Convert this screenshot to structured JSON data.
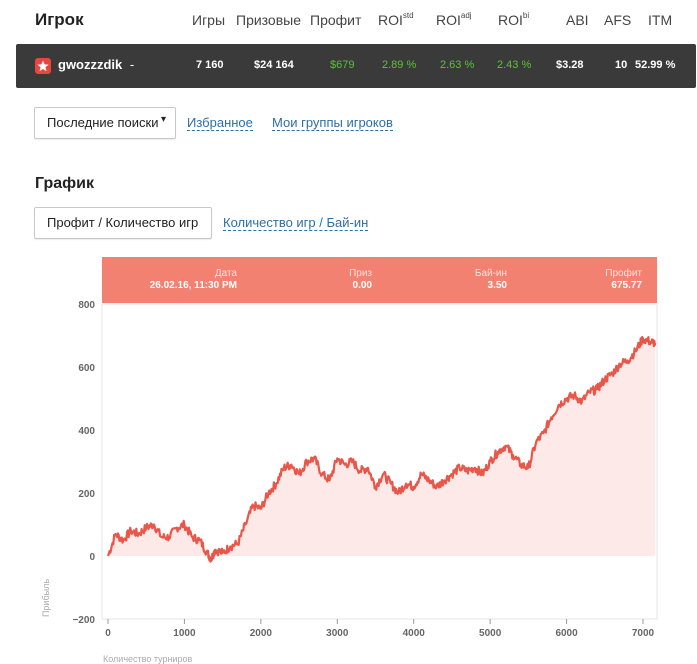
{
  "header": {
    "title": "Игрок",
    "columns": {
      "games": "Игры",
      "prizes": "Призовые",
      "profit": "Профит",
      "roi_std_base": "ROI",
      "roi_std_sup": "std",
      "roi_adj_base": "ROI",
      "roi_adj_sup": "adj",
      "roi_bi_base": "ROI",
      "roi_bi_sup": "bi",
      "abi": "ABI",
      "afs": "AFS",
      "itm": "ITM"
    }
  },
  "player": {
    "name": "gwozzzdik",
    "games": "7 160",
    "prizes": "$24 164",
    "profit": "$679",
    "roi_std": "2.89 %",
    "roi_adj": "2.63 %",
    "roi_bi": "2.43 %",
    "abi": "$3.28",
    "afs": "10",
    "itm": "52.99 %"
  },
  "tabs": {
    "recent": "Последние поиски",
    "favorites": "Избранное",
    "groups": "Мои группы игроков"
  },
  "graph": {
    "title": "График",
    "mode_active": "Профит / Количество игр",
    "mode_other": "Количество игр / Бай-ин"
  },
  "tooltip": {
    "date_label": "Дата",
    "date_value": "26.02.16, 11:30 PM",
    "prize_label": "Приз",
    "prize_value": "0.00",
    "buyin_label": "Бай-ин",
    "buyin_value": "3.50",
    "profit_label": "Профит",
    "profit_value": "675.77"
  },
  "colors": {
    "line": "#e9564a",
    "area": "#fde9e7",
    "tooltip_bg": "#f28172",
    "statbar_bg": "#3a3a3a",
    "positive": "#5ac437"
  },
  "chart_data": {
    "type": "line",
    "xlabel": "Количество турниров",
    "ylabel": "Прибыль",
    "xlim": [
      0,
      7160
    ],
    "ylim": [
      -200,
      800
    ],
    "x_ticks": [
      0,
      1000,
      2000,
      3000,
      4000,
      5000,
      6000,
      7000
    ],
    "y_ticks": [
      -200,
      0,
      200,
      400,
      600,
      800
    ],
    "series": [
      {
        "x": [
          0,
          100,
          200,
          300,
          400,
          500,
          600,
          700,
          800,
          900,
          1000,
          1100,
          1200,
          1300,
          1350,
          1400,
          1500,
          1600,
          1700,
          1800,
          1900,
          2000,
          2100,
          2200,
          2300,
          2400,
          2500,
          2600,
          2700,
          2800,
          2900,
          3000,
          3100,
          3200,
          3300,
          3400,
          3500,
          3600,
          3700,
          3800,
          3900,
          4000,
          4100,
          4200,
          4300,
          4400,
          4500,
          4600,
          4700,
          4800,
          4900,
          5000,
          5100,
          5200,
          5300,
          5400,
          5500,
          5600,
          5700,
          5800,
          5900,
          6000,
          6100,
          6200,
          6300,
          6400,
          6500,
          6600,
          6700,
          6800,
          6900,
          7000,
          7100,
          7160
        ],
        "y": [
          0,
          70,
          50,
          80,
          70,
          90,
          100,
          60,
          60,
          90,
          100,
          60,
          50,
          10,
          -10,
          20,
          10,
          30,
          40,
          100,
          160,
          150,
          200,
          230,
          280,
          290,
          260,
          300,
          310,
          260,
          240,
          310,
          290,
          300,
          270,
          280,
          220,
          260,
          230,
          200,
          230,
          220,
          260,
          240,
          220,
          240,
          260,
          280,
          270,
          280,
          260,
          300,
          330,
          350,
          320,
          290,
          280,
          360,
          390,
          440,
          480,
          500,
          510,
          490,
          520,
          530,
          560,
          580,
          610,
          620,
          650,
          690,
          680,
          676
        ]
      }
    ]
  }
}
